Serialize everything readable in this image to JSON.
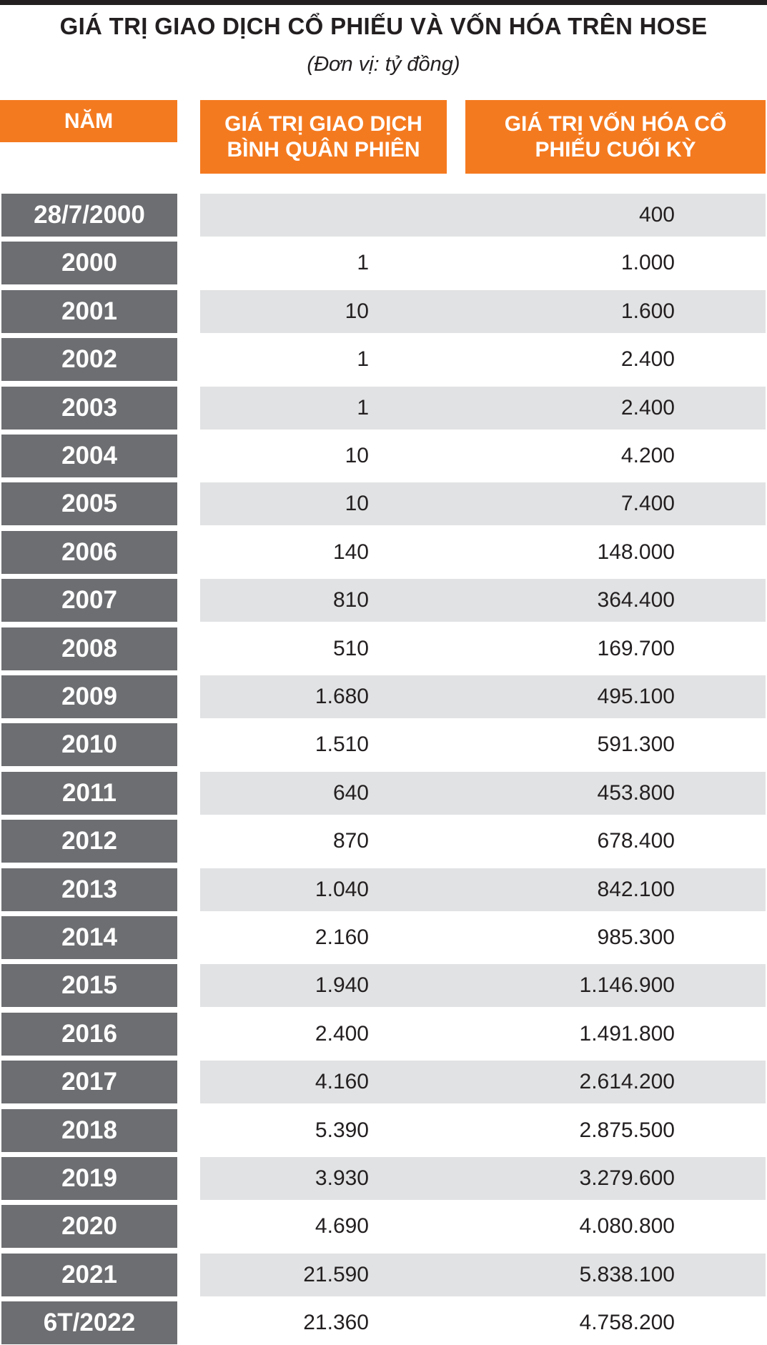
{
  "header": {
    "title": "GIÁ TRỊ GIAO DỊCH CỔ PHIẾU VÀ VỐN HÓA TRÊN HOSE",
    "subtitle": "(Đơn vị: tỷ đồng)"
  },
  "table": {
    "columns": [
      "NĂM",
      "GIÁ TRỊ GIAO DỊCH BÌNH QUÂN PHIÊN",
      "GIÁ TRỊ VỐN HÓA CỔ PHIẾU CUỐI KỲ"
    ],
    "rows": [
      [
        "28/7/2000",
        null,
        "400"
      ],
      [
        "2000",
        "1",
        "1.000"
      ],
      [
        "2001",
        "10",
        "1.600"
      ],
      [
        "2002",
        "1",
        "2.400"
      ],
      [
        "2003",
        "1",
        "2.400"
      ],
      [
        "2004",
        "10",
        "4.200"
      ],
      [
        "2005",
        "10",
        "7.400"
      ],
      [
        "2006",
        "140",
        "148.000"
      ],
      [
        "2007",
        "810",
        "364.400"
      ],
      [
        "2008",
        "510",
        "169.700"
      ],
      [
        "2009",
        "1.680",
        "495.100"
      ],
      [
        "2010",
        "1.510",
        "591.300"
      ],
      [
        "2011",
        "640",
        "453.800"
      ],
      [
        "2012",
        "870",
        "678.400"
      ],
      [
        "2013",
        "1.040",
        "842.100"
      ],
      [
        "2014",
        "2.160",
        "985.300"
      ],
      [
        "2015",
        "1.940",
        "1.146.900"
      ],
      [
        "2016",
        "2.400",
        "1.491.800"
      ],
      [
        "2017",
        "4.160",
        "2.614.200"
      ],
      [
        "2018",
        "5.390",
        "2.875.500"
      ],
      [
        "2019",
        "3.930",
        "3.279.600"
      ],
      [
        "2020",
        "4.690",
        "4.080.800"
      ],
      [
        "2021",
        "21.590",
        "5.838.100"
      ],
      [
        "6T/2022",
        "21.360",
        "4.758.200"
      ]
    ]
  }
}
